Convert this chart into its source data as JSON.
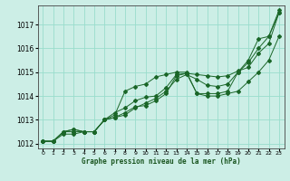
{
  "title": "Graphe pression niveau de la mer (hPa)",
  "background_color": "#cceee6",
  "grid_color": "#99ddcc",
  "line_color": "#1a6628",
  "xlim": [
    -0.5,
    23.5
  ],
  "ylim": [
    1011.8,
    1017.8
  ],
  "yticks": [
    1012,
    1013,
    1014,
    1015,
    1016,
    1017
  ],
  "xticks": [
    0,
    1,
    2,
    3,
    4,
    5,
    6,
    7,
    8,
    9,
    10,
    11,
    12,
    13,
    14,
    15,
    16,
    17,
    18,
    19,
    20,
    21,
    22,
    23
  ],
  "series": [
    [
      1012.1,
      1012.1,
      1012.5,
      1012.6,
      1012.5,
      1012.5,
      1013.0,
      1013.2,
      1014.2,
      1014.4,
      1014.5,
      1014.8,
      1014.9,
      1015.0,
      1015.0,
      1014.1,
      1014.1,
      1014.1,
      1014.2,
      1015.0,
      1015.5,
      1016.4,
      1016.5,
      1017.6
    ],
    [
      1012.1,
      1012.1,
      1012.5,
      1012.6,
      1012.5,
      1012.5,
      1013.0,
      1013.1,
      1013.3,
      1013.55,
      1013.6,
      1013.8,
      1014.1,
      1014.85,
      1014.95,
      1014.1,
      1014.0,
      1014.0,
      1014.1,
      1014.2,
      1014.6,
      1015.0,
      1015.5,
      1016.5
    ],
    [
      1012.1,
      1012.1,
      1012.5,
      1012.5,
      1012.5,
      1012.5,
      1013.0,
      1013.1,
      1013.2,
      1013.5,
      1013.7,
      1013.9,
      1014.2,
      1014.7,
      1014.9,
      1014.7,
      1014.45,
      1014.4,
      1014.5,
      1015.0,
      1015.4,
      1016.0,
      1016.5,
      1017.5
    ],
    [
      1012.1,
      1012.1,
      1012.4,
      1012.4,
      1012.5,
      1012.5,
      1013.0,
      1013.3,
      1013.5,
      1013.8,
      1013.95,
      1014.0,
      1014.35,
      1014.9,
      1014.95,
      1014.9,
      1014.85,
      1014.8,
      1014.85,
      1015.05,
      1015.2,
      1015.8,
      1016.2,
      1017.5
    ]
  ]
}
